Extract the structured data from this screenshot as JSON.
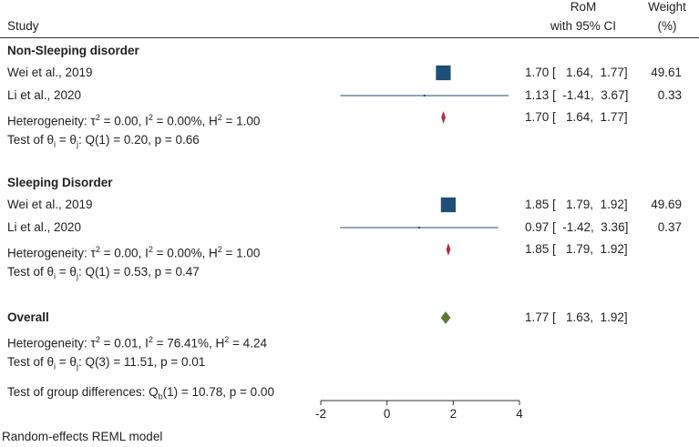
{
  "header": {
    "study": "Study",
    "rom_line1": "RoM",
    "rom_line2": "with 95% CI",
    "weight_line1": "Weight",
    "weight_line2": "(%)"
  },
  "groups": [
    {
      "name": "Non-Sleeping disorder",
      "studies": [
        {
          "label": "Wei et al., 2019",
          "ci_text": "1.70 [   1.64,  1.77]",
          "weight": "49.61"
        },
        {
          "label": "Li et al., 2020",
          "ci_text": "1.13 [  -1.41,  3.67]",
          "weight": "0.33"
        }
      ],
      "heterogeneity": {
        "prefix": "Heterogeneity: τ",
        "tau_sup": "2",
        "tau_val": " = 0.00, I",
        "i_sup": "2",
        "i_val": " = 0.00%, H",
        "h_sup": "2",
        "h_val": " = 1.00",
        "ci_text": "1.70 [   1.64,  1.77]"
      },
      "test": {
        "prefix": "Test of θ",
        "s1": "i",
        "mid": " = θ",
        "s2": "j",
        "rest": ": Q(1) = 0.20, p = 0.66"
      }
    },
    {
      "name": "Sleeping Disorder",
      "studies": [
        {
          "label": "Wei et al., 2019",
          "ci_text": "1.85 [   1.79,  1.92]",
          "weight": "49.69"
        },
        {
          "label": "Li et al., 2020",
          "ci_text": "0.97 [  -1.42,  3.36]",
          "weight": "0.37"
        }
      ],
      "heterogeneity": {
        "prefix": "Heterogeneity: τ",
        "tau_sup": "2",
        "tau_val": " = 0.00, I",
        "i_sup": "2",
        "i_val": " = 0.00%, H",
        "h_sup": "2",
        "h_val": " = 1.00",
        "ci_text": "1.85 [   1.79,  1.92]"
      },
      "test": {
        "prefix": "Test of θ",
        "s1": "i",
        "mid": " = θ",
        "s2": "j",
        "rest": ": Q(1) = 0.53, p = 0.47"
      }
    }
  ],
  "overall": {
    "label": "Overall",
    "ci_text": "1.77 [   1.63,  1.92]",
    "heterogeneity": {
      "prefix": "Heterogeneity: τ",
      "tau_sup": "2",
      "tau_val": " = 0.01, I",
      "i_sup": "2",
      "i_val": " = 76.41%, H",
      "h_sup": "2",
      "h_val": " = 4.24"
    },
    "test": {
      "prefix": "Test of θ",
      "s1": "i",
      "mid": " = θ",
      "s2": "j",
      "rest": ": Q(3) = 11.51, p = 0.01"
    },
    "group_diff": {
      "prefix": "Test of group differences: Q",
      "sub": "b",
      "rest": "(1) = 10.78, p = 0.00"
    }
  },
  "footer": "Random-effects REML model",
  "chart_data": {
    "type": "forest",
    "x_ticks": [
      -2,
      0,
      2,
      4
    ],
    "x_tick_labels": [
      "-2",
      "0",
      "2",
      "4"
    ],
    "xlim": [
      -2,
      4
    ],
    "studies": [
      {
        "group": "Non-Sleeping disorder",
        "label": "Wei et al., 2019",
        "estimate": 1.7,
        "lower": 1.64,
        "upper": 1.77,
        "weight": 49.61
      },
      {
        "group": "Non-Sleeping disorder",
        "label": "Li et al., 2020",
        "estimate": 1.13,
        "lower": -1.41,
        "upper": 3.67,
        "weight": 0.33
      },
      {
        "group": "Sleeping Disorder",
        "label": "Wei et al., 2019",
        "estimate": 1.85,
        "lower": 1.79,
        "upper": 1.92,
        "weight": 49.69
      },
      {
        "group": "Sleeping Disorder",
        "label": "Li et al., 2020",
        "estimate": 0.97,
        "lower": -1.42,
        "upper": 3.36,
        "weight": 0.37
      }
    ],
    "subgroup_summaries": [
      {
        "group": "Non-Sleeping disorder",
        "estimate": 1.7,
        "lower": 1.64,
        "upper": 1.77
      },
      {
        "group": "Sleeping Disorder",
        "estimate": 1.85,
        "lower": 1.79,
        "upper": 1.92
      }
    ],
    "overall_summary": {
      "estimate": 1.77,
      "lower": 1.63,
      "upper": 1.92
    },
    "colors": {
      "study_box": "#1f4e79",
      "ci_line": "#1f4e79",
      "subgroup_diamond": "#a8323e",
      "overall_diamond": "#5a7a2e",
      "axis": "#333333"
    }
  }
}
